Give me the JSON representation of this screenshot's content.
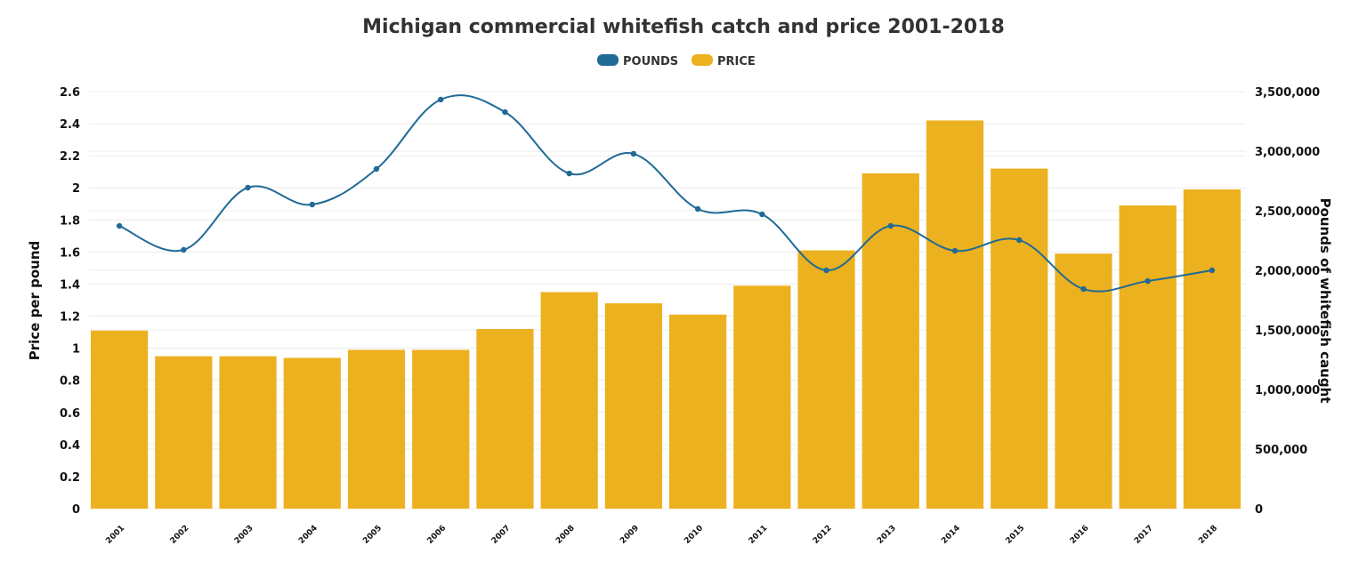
{
  "chart_data": {
    "type": "bar+line",
    "title": "Michigan commercial whitefish catch and price 2001-2018",
    "legend": {
      "placement": "top-center",
      "entries": [
        {
          "label": "POUNDS",
          "color": "#1f6a96"
        },
        {
          "label": "PRICE",
          "color": "#ecb11f"
        }
      ]
    },
    "categories": [
      "2001",
      "2002",
      "2003",
      "2004",
      "2005",
      "2006",
      "2007",
      "2008",
      "2009",
      "2010",
      "2011",
      "2012",
      "2013",
      "2014",
      "2015",
      "2016",
      "2017",
      "2018"
    ],
    "series": [
      {
        "name": "PRICE",
        "type": "bar",
        "axis": "left",
        "color": "#ecb11f",
        "values": [
          1.11,
          0.95,
          0.95,
          0.94,
          0.99,
          0.99,
          1.12,
          1.35,
          1.28,
          1.21,
          1.39,
          1.61,
          2.09,
          2.42,
          2.12,
          1.59,
          1.89,
          1.99
        ]
      },
      {
        "name": "POUNDS",
        "type": "line",
        "axis": "right",
        "color": "#1f6a96",
        "smooth": true,
        "values": [
          2373000,
          2172000,
          2694000,
          2552000,
          2851000,
          3433000,
          3328000,
          2813000,
          2978000,
          2515000,
          2470000,
          2000000,
          2373000,
          2164000,
          2254000,
          1843000,
          1910000,
          2000000
        ]
      }
    ],
    "ylabel_left": "Price per pound",
    "ylabel_right": "Pounds of whitefish caught",
    "ylim_left": [
      0,
      2.6
    ],
    "ylim_right": [
      0,
      3500000
    ],
    "yticks_left": [
      "0",
      "0.2",
      "0.4",
      "0.6",
      "0.8",
      "1",
      "1.2",
      "1.4",
      "1.6",
      "1.8",
      "2",
      "2.2",
      "2.4",
      "2.6"
    ],
    "yticks_right": [
      "0",
      "500,000",
      "1,000,000",
      "1,500,000",
      "2,000,000",
      "2,500,000",
      "3,000,000",
      "3,500,000"
    ],
    "grid": true
  }
}
